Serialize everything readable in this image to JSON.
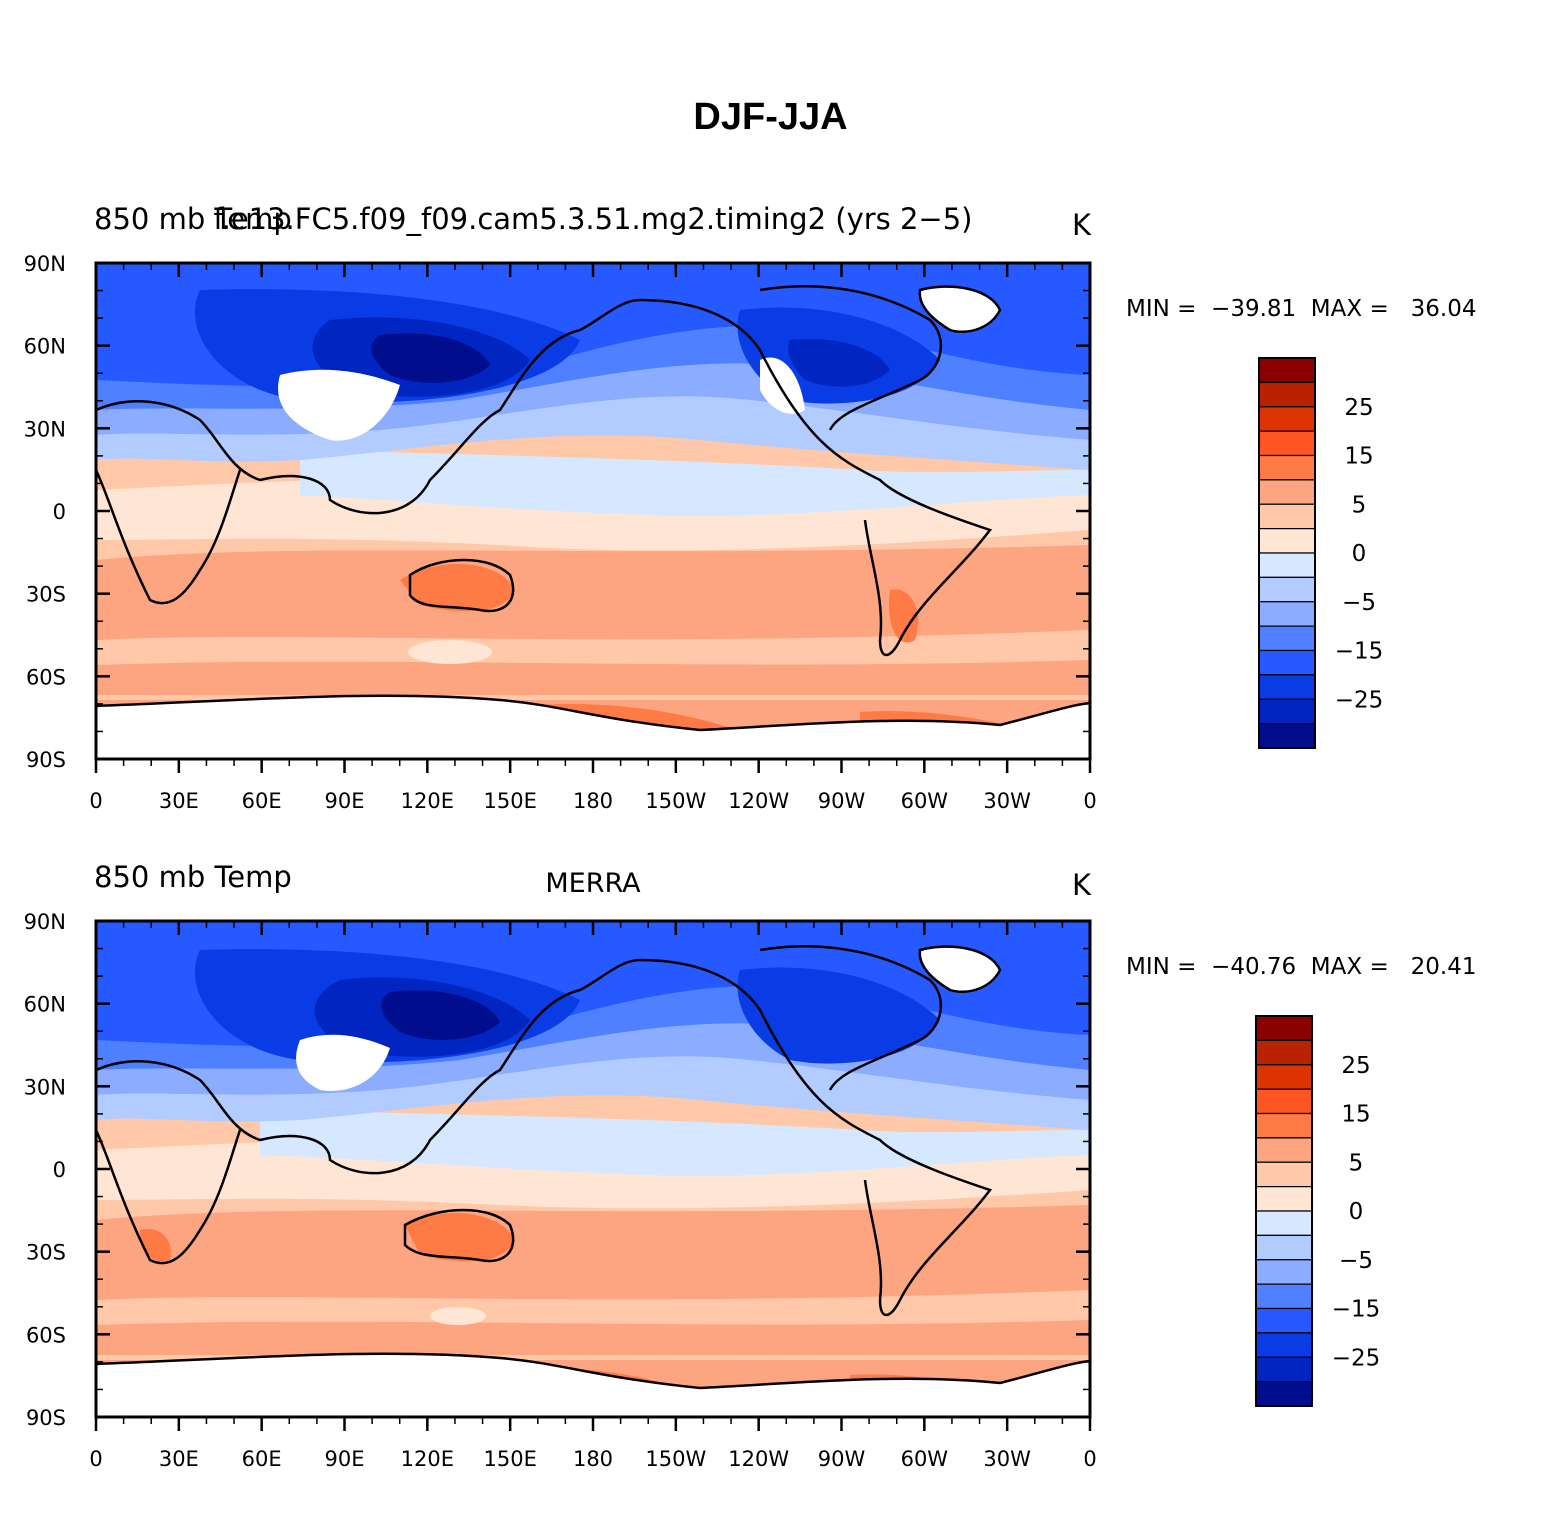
{
  "title": "DJF-JJA",
  "colorbar": {
    "colors": [
      "#8b0000",
      "#b82200",
      "#dd3300",
      "#ff5522",
      "#ff7b45",
      "#fda580",
      "#ffc8a8",
      "#ffe5d3",
      "#d5e8ff",
      "#b2ccff",
      "#8cadff",
      "#4f80ff",
      "#2659ff",
      "#0a3ce6",
      "#0025c0",
      "#000d8c"
    ],
    "labels": [
      "25",
      "15",
      "5",
      "0",
      "−5",
      "−15",
      "−25"
    ]
  },
  "axes": {
    "lat_labels": [
      "90N",
      "60N",
      "30N",
      "0",
      "30S",
      "60S",
      "90S"
    ],
    "lon_labels": [
      "0",
      "30E",
      "60E",
      "90E",
      "120E",
      "150E",
      "180",
      "150W",
      "120W",
      "90W",
      "60W",
      "30W",
      "0"
    ]
  },
  "panels": [
    {
      "left_label": "850 mb Temp",
      "center_label": "f.e13.FC5.f09_f09.cam5.3.51.mg2.timing2 (yrs 2−5)",
      "right_label": "K",
      "min": "−39.81",
      "max": "36.04"
    },
    {
      "left_label": "850 mb Temp",
      "center_label": "MERRA",
      "right_label": "K",
      "min": "−40.76",
      "max": "20.41"
    }
  ]
}
